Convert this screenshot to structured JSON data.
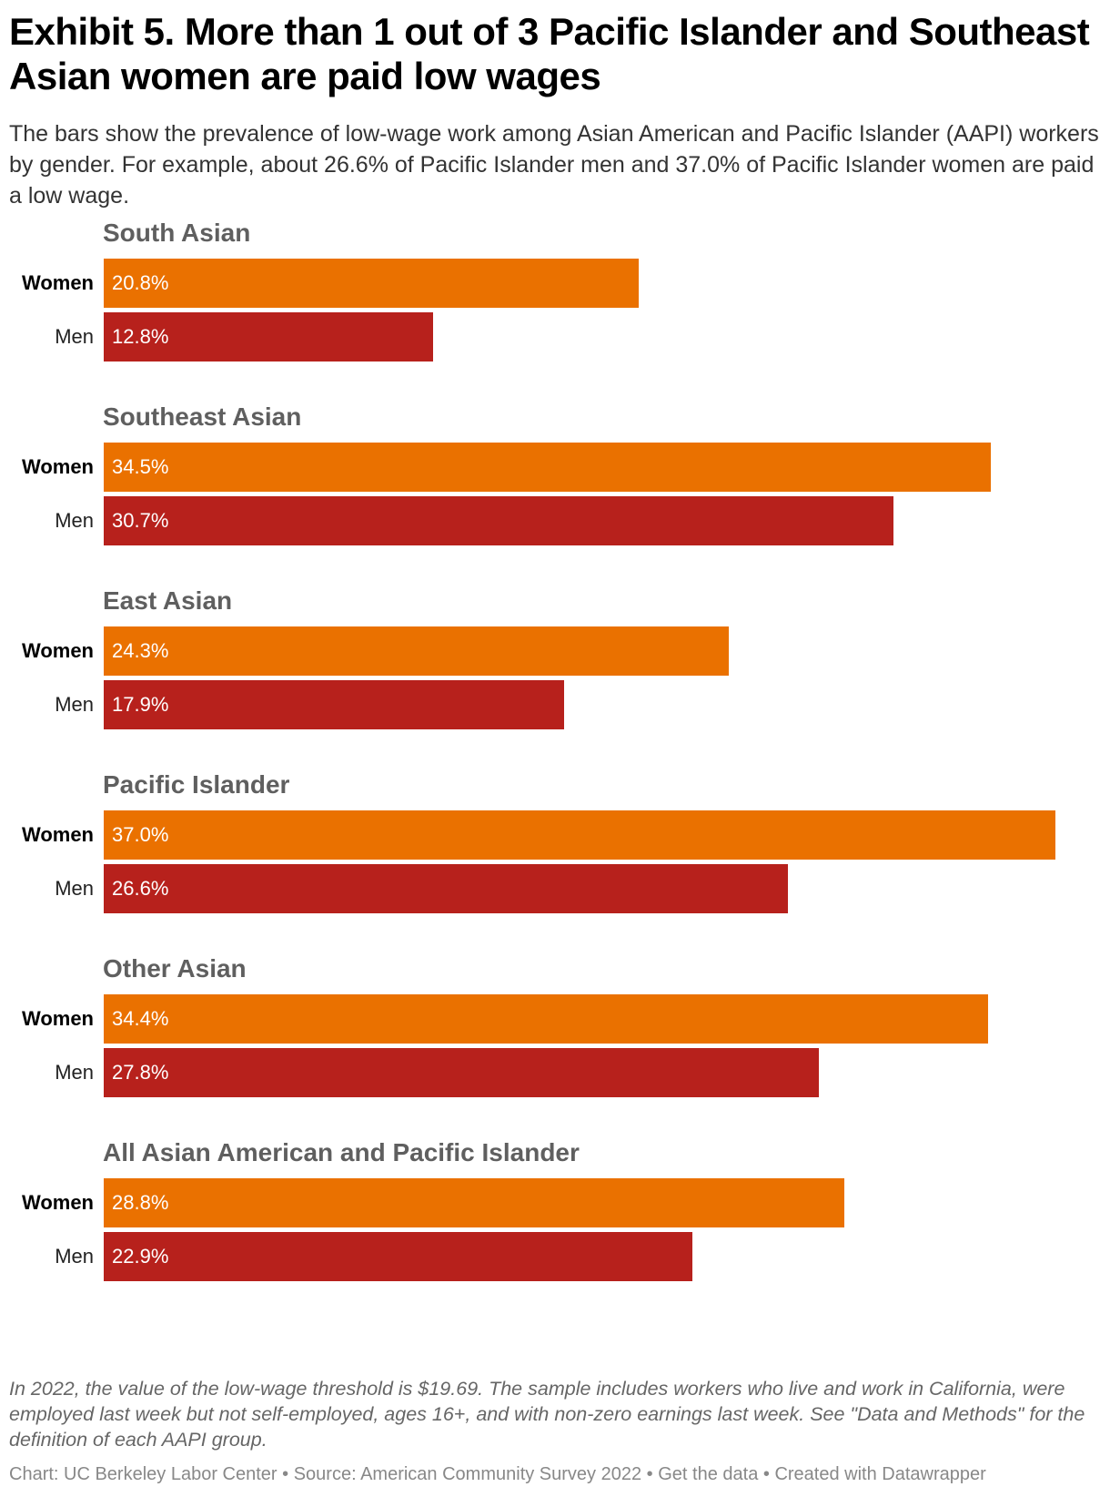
{
  "title": "Exhibit 5. More than 1 out of 3 Pacific Islander and Southeast Asian women are paid low wages",
  "description": "The bars show the prevalence of low-wage work among Asian American and Pacific Islander (AAPI) workers by gender. For example, about 26.6% of Pacific Islander men and 37.0% of Pacific Islander women are paid a low wage.",
  "notes": "In 2022, the value of the low-wage threshold is $19.69. The sample includes workers who live and work in California, were employed last week but not self-employed, ages 16+, and with non-zero earnings last week. See \"Data and Methods\" for the definition of each AAPI group.",
  "footer": {
    "chart_by": "Chart: UC Berkeley Labor Center",
    "source": "Source: American Community Survey 2022",
    "get_data": "Get the data",
    "created_with": "Created with Datawrapper",
    "separator": " • "
  },
  "colors": {
    "women": "#ea7100",
    "men": "#b7211c"
  },
  "chart_data": {
    "type": "bar",
    "orientation": "horizontal",
    "xlim": [
      0,
      37.0
    ],
    "grid": false,
    "categories": [
      "South Asian",
      "Southeast Asian",
      "East Asian",
      "Pacific Islander",
      "Other Asian",
      "All Asian American and Pacific Islander"
    ],
    "series": [
      {
        "name": "Women",
        "values": [
          20.8,
          34.5,
          24.3,
          37.0,
          34.4,
          28.8
        ],
        "labels": [
          "20.8%",
          "34.5%",
          "24.3%",
          "37.0%",
          "34.4%",
          "28.8%"
        ]
      },
      {
        "name": "Men",
        "values": [
          12.8,
          30.7,
          17.9,
          26.6,
          27.8,
          22.9
        ],
        "labels": [
          "12.8%",
          "30.7%",
          "17.9%",
          "26.6%",
          "27.8%",
          "22.9%"
        ]
      }
    ]
  }
}
